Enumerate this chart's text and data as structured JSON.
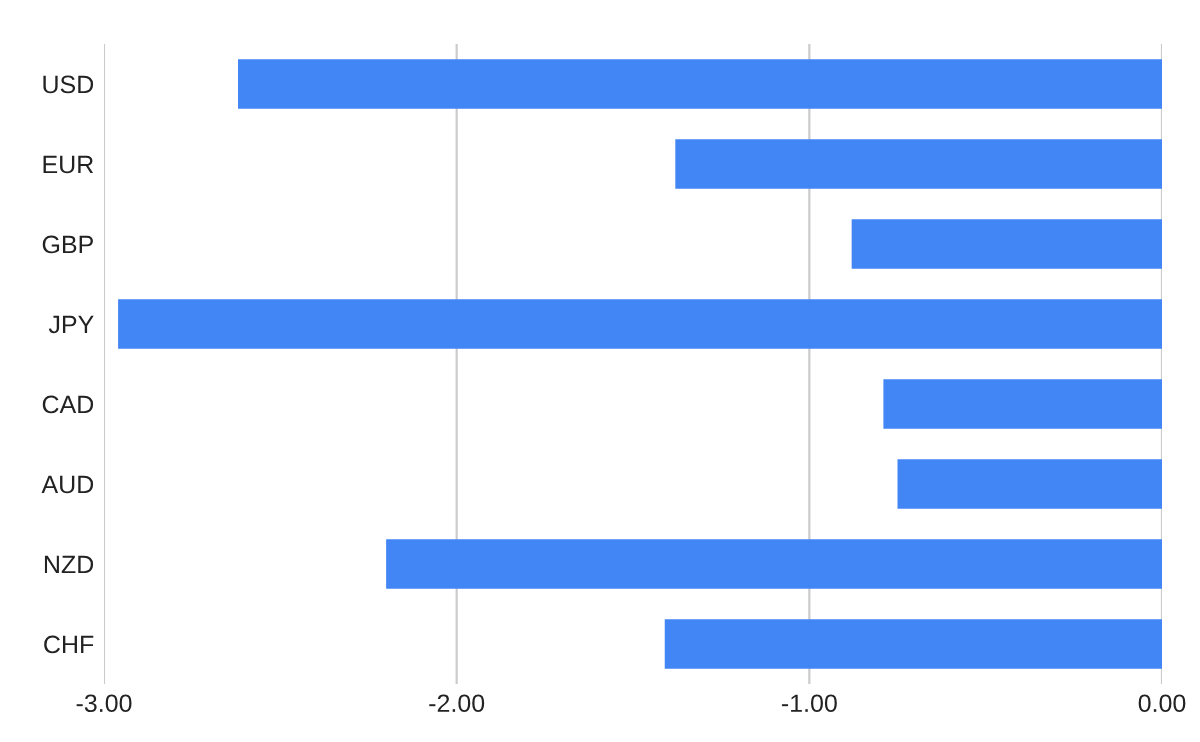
{
  "chart_data": {
    "type": "bar",
    "orientation": "horizontal",
    "categories": [
      "USD",
      "EUR",
      "GBP",
      "JPY",
      "CAD",
      "AUD",
      "NZD",
      "CHF"
    ],
    "values": [
      -2.62,
      -1.38,
      -0.88,
      -2.96,
      -0.79,
      -0.75,
      -2.2,
      -1.41
    ],
    "color": "#4285f4",
    "xlim": [
      -3,
      0
    ],
    "xticks": [
      {
        "value": -3,
        "label": "-3.00"
      },
      {
        "value": -2,
        "label": "-2.00"
      },
      {
        "value": -1,
        "label": "-1.00"
      },
      {
        "value": 0,
        "label": "0.00"
      }
    ],
    "grid": "x"
  }
}
